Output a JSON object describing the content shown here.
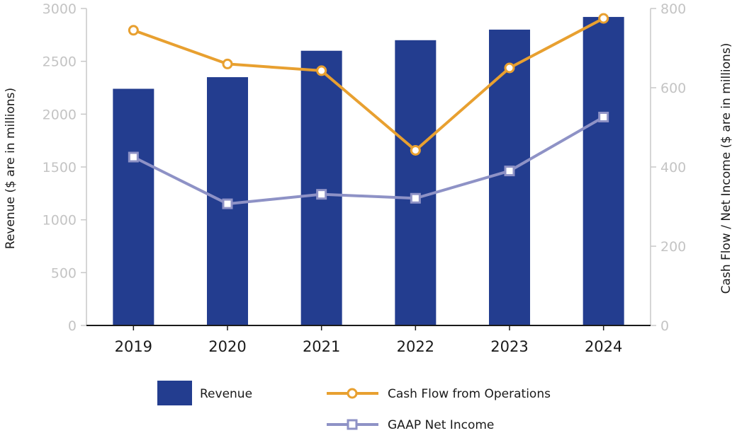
{
  "chart_data": {
    "type": "bar",
    "categories": [
      "2019",
      "2020",
      "2021",
      "2022",
      "2023",
      "2024"
    ],
    "series": [
      {
        "name": "Revenue",
        "type": "bar",
        "axis": "left",
        "values": [
          2240,
          2350,
          2600,
          2700,
          2800,
          2920
        ],
        "color": "#233d8f"
      },
      {
        "name": "Cash Flow from Operations",
        "type": "line",
        "axis": "right",
        "marker": "circle",
        "values": [
          745,
          660,
          643,
          442,
          650,
          775
        ],
        "color": "#e8a030"
      },
      {
        "name": "GAAP Net Income",
        "type": "line",
        "axis": "right",
        "marker": "square",
        "values": [
          425,
          307,
          331,
          321,
          390,
          526
        ],
        "color": "#8e92c6"
      }
    ],
    "ylabel_left": "Revenue   ($ are in millions)",
    "ylabel_right": "Cash Flow / Net Income   ($ are in millions)",
    "ylim_left": [
      0,
      3000
    ],
    "ylim_right": [
      0,
      800
    ],
    "yticks_left": [
      "0",
      "500",
      "1000",
      "1500",
      "2000",
      "2500",
      "3000"
    ],
    "yticks_right": [
      "0",
      "200",
      "400",
      "600",
      "800"
    ],
    "grid": false,
    "legend_position": "bottom"
  }
}
